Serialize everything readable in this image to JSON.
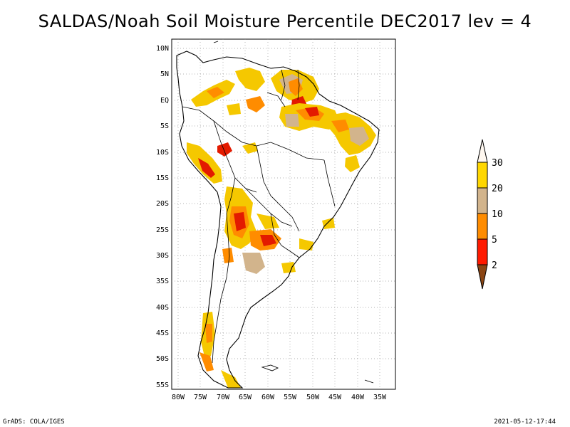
{
  "title": "SALDAS/Noah Soil Moisture Percentile DEC2017 lev = 4",
  "footer": {
    "left": "GrADS: COLA/IGES",
    "right": "2021-05-12-17:44"
  },
  "y_ticks": [
    "10N",
    "5N",
    "EQ",
    "5S",
    "10S",
    "15S",
    "20S",
    "25S",
    "30S",
    "35S",
    "40S",
    "45S",
    "50S",
    "55S"
  ],
  "x_ticks": [
    "80W",
    "75W",
    "70W",
    "65W",
    "60W",
    "55W",
    "50W",
    "45W",
    "40W",
    "35W"
  ],
  "legend": {
    "labels": [
      "30",
      "20",
      "10",
      "5",
      "2"
    ],
    "colors": [
      "#fff8f0",
      "#ffd700",
      "#d2b48c",
      "#ff8c00",
      "#ff1a00",
      "#8b4513"
    ]
  },
  "colors": {
    "yellow": "#f5c800",
    "tan": "#d2b48c",
    "orange": "#ff8c00",
    "red": "#e31a00",
    "brown": "#8b4513"
  }
}
